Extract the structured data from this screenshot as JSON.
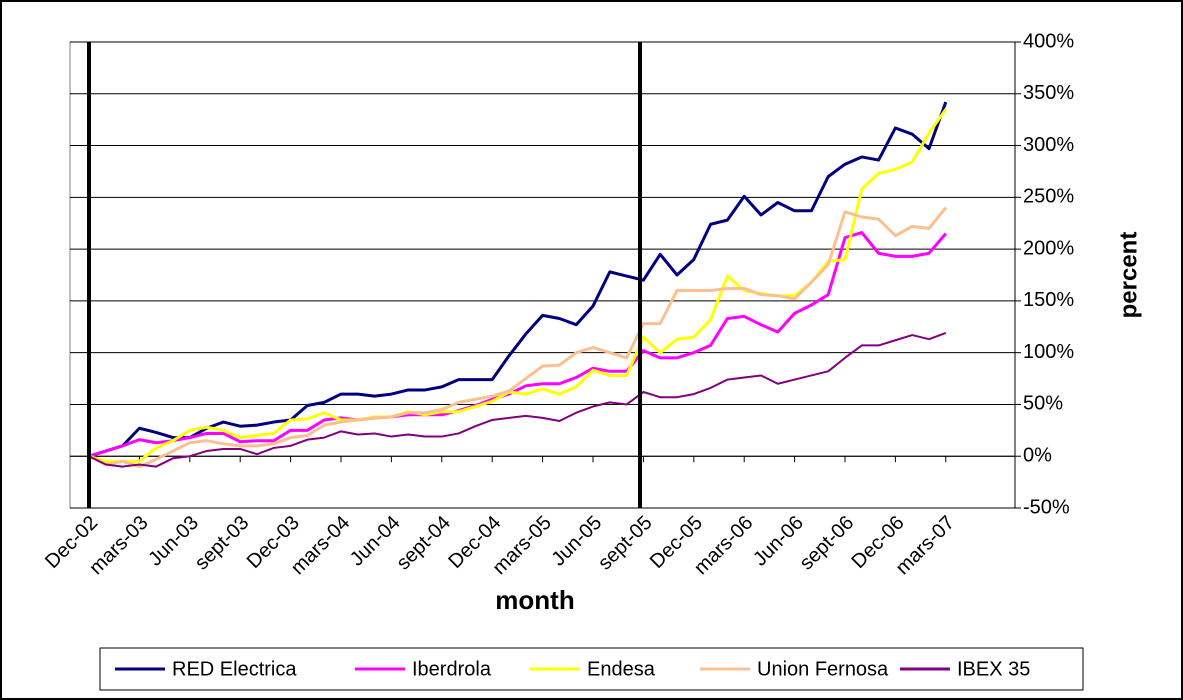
{
  "chart_data": {
    "type": "line",
    "x_label": "month",
    "y_label": "percent",
    "categories": [
      "Dec-02",
      null,
      null,
      "mars-03",
      null,
      null,
      "Jun-03",
      null,
      null,
      "sept-03",
      null,
      null,
      "Dec-03",
      null,
      null,
      "mars-04",
      null,
      null,
      "Jun-04",
      null,
      null,
      "sept-04",
      null,
      null,
      "Dec-04",
      null,
      null,
      "mars-05",
      null,
      null,
      "Jun-05",
      null,
      null,
      "sept-05",
      null,
      null,
      "Dec-05",
      null,
      null,
      "mars-06",
      null,
      null,
      "Jun-06",
      null,
      null,
      "sept-06",
      null,
      null,
      "Dec-06",
      null,
      null,
      "mars-07"
    ],
    "series": [
      {
        "name": "RED Electrica",
        "color": "#000080",
        "values": [
          0,
          5,
          10,
          27,
          23,
          18,
          18,
          27,
          33,
          29,
          30,
          33,
          35,
          49,
          52,
          60,
          60,
          58,
          60,
          64,
          64,
          67,
          74,
          74,
          74,
          97,
          118,
          136,
          133,
          127,
          145,
          178,
          174,
          170,
          195,
          175,
          190,
          224,
          228,
          251,
          233,
          245,
          237,
          237,
          270,
          282,
          289,
          286,
          317,
          311,
          297,
          342
        ]
      },
      {
        "name": "Iberdrola",
        "color": "#ff00ff",
        "values": [
          0,
          5,
          10,
          16,
          13,
          15,
          18,
          22,
          22,
          14,
          15,
          15,
          25,
          25,
          35,
          37,
          35,
          37,
          38,
          40,
          40,
          40,
          44,
          49,
          55,
          60,
          68,
          70,
          70,
          76,
          85,
          82,
          82,
          102,
          95,
          95,
          100,
          107,
          133,
          135,
          127,
          120,
          138,
          146,
          156,
          211,
          216,
          196,
          193,
          193,
          196,
          215
        ]
      },
      {
        "name": "Endesa",
        "color": "#ffff00",
        "values": [
          0,
          -5,
          -5,
          -5,
          8,
          15,
          25,
          28,
          25,
          18,
          20,
          22,
          35,
          36,
          42,
          35,
          35,
          38,
          38,
          43,
          40,
          43,
          43,
          48,
          53,
          62,
          60,
          65,
          60,
          67,
          83,
          78,
          78,
          115,
          100,
          113,
          115,
          132,
          174,
          160,
          157,
          155,
          155,
          168,
          188,
          190,
          258,
          273,
          277,
          284,
          312,
          335
        ]
      },
      {
        "name": "Union Fernosa",
        "color": "#fac090",
        "values": [
          0,
          -8,
          -5,
          -10,
          -3,
          5,
          13,
          15,
          12,
          10,
          10,
          12,
          18,
          20,
          30,
          33,
          35,
          37,
          38,
          42,
          42,
          45,
          52,
          55,
          58,
          63,
          75,
          87,
          88,
          100,
          105,
          100,
          95,
          128,
          128,
          160,
          160,
          160,
          162,
          162,
          156,
          155,
          152,
          168,
          185,
          236,
          231,
          229,
          213,
          222,
          220,
          240
        ]
      },
      {
        "name": "IBEX 35",
        "color": "#800080",
        "values": [
          0,
          -8,
          -10,
          -8,
          -10,
          -2,
          0,
          5,
          7,
          7,
          2,
          8,
          10,
          16,
          18,
          24,
          21,
          22,
          19,
          21,
          19,
          19,
          22,
          29,
          35,
          37,
          39,
          37,
          34,
          42,
          48,
          52,
          50,
          62,
          57,
          57,
          60,
          66,
          74,
          76,
          78,
          70,
          74,
          78,
          82,
          95,
          107,
          107,
          112,
          117,
          113,
          119
        ]
      }
    ],
    "ylim": [
      -50,
      400
    ],
    "yticks": [
      {
        "value": -50,
        "label": "-50%"
      },
      {
        "value": 0,
        "label": "0%"
      },
      {
        "value": 50,
        "label": "50%"
      },
      {
        "value": 100,
        "label": "100%"
      },
      {
        "value": 150,
        "label": "150%"
      },
      {
        "value": 200,
        "label": "200%"
      },
      {
        "value": 250,
        "label": "250%"
      },
      {
        "value": 300,
        "label": "300%"
      },
      {
        "value": 350,
        "label": "350%"
      },
      {
        "value": 400,
        "label": "400%"
      }
    ],
    "grid": true,
    "legend": "bottom"
  }
}
